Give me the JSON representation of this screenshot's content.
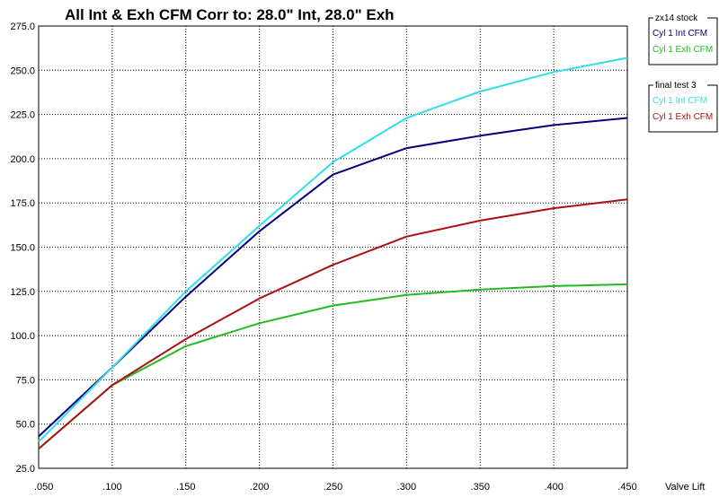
{
  "chart_data": {
    "type": "line",
    "title": "All Int & Exh CFM   Corr to: 28.0\" Int, 28.0\" Exh",
    "xlabel": "Valve Lift",
    "ylabel": "",
    "x": [
      0.05,
      0.1,
      0.15,
      0.2,
      0.25,
      0.3,
      0.35,
      0.4,
      0.45
    ],
    "x_tick_labels": [
      ".050",
      ".100",
      ".150",
      ".200",
      ".250",
      ".300",
      ".350",
      ".400",
      ".450"
    ],
    "y_tick_values": [
      25,
      50,
      75,
      100,
      125,
      150,
      175,
      200,
      225,
      250,
      275
    ],
    "y_tick_labels": [
      "25.0",
      "50.0",
      "75.0",
      "100.0",
      "125.0",
      "150.0",
      "175.0",
      "200.0",
      "225.0",
      "250.0",
      "275.0"
    ],
    "xlim": [
      0.05,
      0.45
    ],
    "ylim": [
      25,
      275
    ],
    "grid": true,
    "legend_placement": "right",
    "legend_groups": [
      {
        "title": "zx14 stock",
        "series": [
          {
            "name": "Cyl 1 Int CFM",
            "color": "#000080",
            "values": [
              43,
              82,
              122,
              159,
              191,
              206,
              213,
              219,
              223
            ]
          },
          {
            "name": "Cyl 1 Exh CFM",
            "color": "#22bb22",
            "values": [
              36,
              72,
              94,
              107,
              117,
              123,
              126,
              128,
              129
            ]
          }
        ]
      },
      {
        "title": "final test 3",
        "series": [
          {
            "name": "Cyl 1 Int CFM",
            "color": "#33dde8",
            "values": [
              40,
              82,
              125,
              162,
              198,
              223,
              238,
              249,
              257
            ]
          },
          {
            "name": "Cyl 1 Exh CFM",
            "color": "#aa1111",
            "values": [
              36,
              72,
              98,
              121,
              140,
              156,
              165,
              172,
              177
            ]
          }
        ]
      }
    ]
  }
}
